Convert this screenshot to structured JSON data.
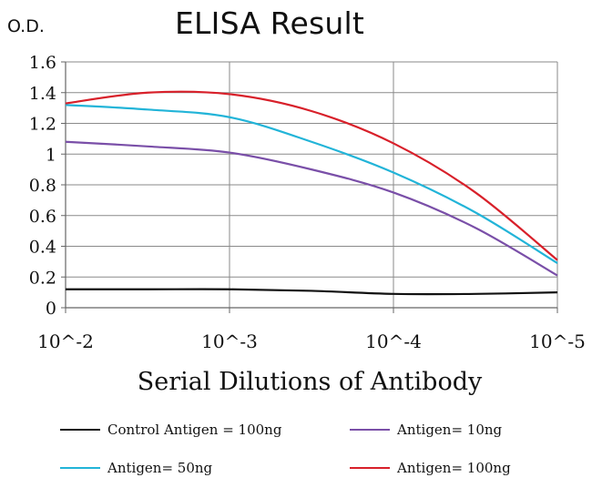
{
  "chart_data": {
    "type": "line",
    "title": "ELISA Result",
    "ylabel": "O.D.",
    "xlabel": "Serial Dilutions of Antibody",
    "x_ticks": [
      "10^-2",
      "10^-3",
      "10^-4",
      "10^-5"
    ],
    "y_ticks": [
      "0",
      "0.2",
      "0.4",
      "0.6",
      "0.8",
      "1",
      "1.2",
      "1.4",
      "1.6"
    ],
    "ylim": [
      0,
      1.6
    ],
    "grid": true,
    "legend_position": "bottom",
    "series": [
      {
        "name": "Control Antigen = 100ng",
        "color": "#111111",
        "x": [
          0,
          0.5,
          1,
          1.5,
          2,
          2.5,
          3
        ],
        "values": [
          0.12,
          0.12,
          0.12,
          0.11,
          0.09,
          0.09,
          0.1
        ]
      },
      {
        "name": "Antigen= 10ng",
        "color": "#7a4fa8",
        "x": [
          0,
          0.5,
          1,
          1.5,
          2,
          2.5,
          3
        ],
        "values": [
          1.08,
          1.05,
          1.01,
          0.9,
          0.75,
          0.52,
          0.21
        ]
      },
      {
        "name": "Antigen= 50ng",
        "color": "#22b4d8",
        "x": [
          0,
          0.5,
          1,
          1.5,
          2,
          2.5,
          3
        ],
        "values": [
          1.32,
          1.29,
          1.24,
          1.08,
          0.88,
          0.62,
          0.29
        ]
      },
      {
        "name": "Antigen= 100ng",
        "color": "#d8202a",
        "x": [
          0,
          0.5,
          1,
          1.5,
          2,
          2.5,
          3
        ],
        "values": [
          1.33,
          1.4,
          1.39,
          1.28,
          1.07,
          0.75,
          0.31
        ]
      }
    ]
  }
}
